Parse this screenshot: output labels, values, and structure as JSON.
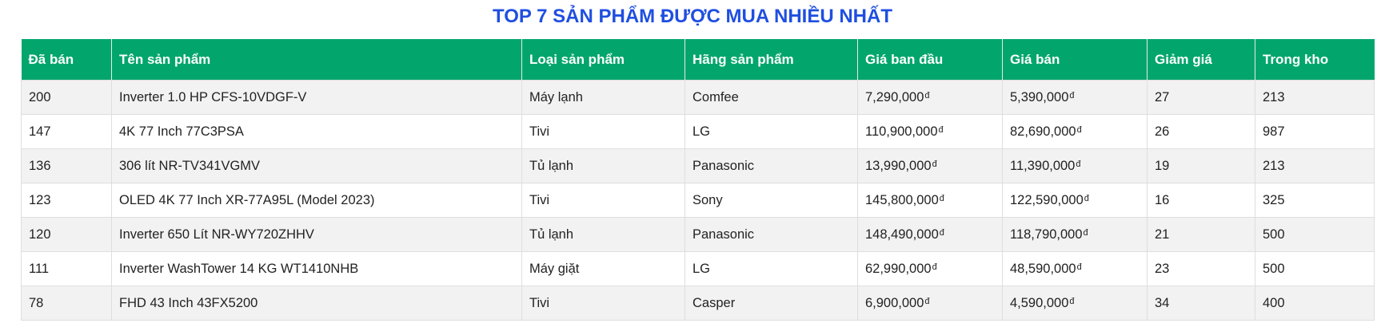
{
  "title": "TOP 7 SẢN PHẨM ĐƯỢC MUA NHIỀU NHẤT",
  "currency_symbol": "đ",
  "colors": {
    "title": "#1f4fe0",
    "header_bg": "#02a66c",
    "header_text": "#ffffff",
    "row_alt_bg": "#f2f2f2"
  },
  "table": {
    "headers": [
      "Đã bán",
      "Tên sản phẩm",
      "Loại sản phẩm",
      "Hãng sản phẩm",
      "Giá ban đầu",
      "Giá bán",
      "Giảm giá",
      "Trong kho"
    ],
    "rows": [
      {
        "sold": "200",
        "name": "Inverter 1.0 HP CFS-10VDGF-V",
        "category": "Máy lạnh",
        "brand": "Comfee",
        "original_price": "7,290,000",
        "sale_price": "5,390,000",
        "discount": "27",
        "stock": "213"
      },
      {
        "sold": "147",
        "name": "4K 77 Inch 77C3PSA",
        "category": "Tivi",
        "brand": "LG",
        "original_price": "110,900,000",
        "sale_price": "82,690,000",
        "discount": "26",
        "stock": "987"
      },
      {
        "sold": "136",
        "name": "306 lít NR-TV341VGMV",
        "category": "Tủ lạnh",
        "brand": "Panasonic",
        "original_price": "13,990,000",
        "sale_price": "11,390,000",
        "discount": "19",
        "stock": "213"
      },
      {
        "sold": "123",
        "name": "OLED 4K 77 Inch XR-77A95L (Model 2023)",
        "category": "Tivi",
        "brand": "Sony",
        "original_price": "145,800,000",
        "sale_price": "122,590,000",
        "discount": "16",
        "stock": "325"
      },
      {
        "sold": "120",
        "name": "Inverter 650 Lít NR-WY720ZHHV",
        "category": "Tủ lạnh",
        "brand": "Panasonic",
        "original_price": "148,490,000",
        "sale_price": "118,790,000",
        "discount": "21",
        "stock": "500"
      },
      {
        "sold": "111",
        "name": "Inverter WashTower 14 KG WT1410NHB",
        "category": "Máy giặt",
        "brand": "LG",
        "original_price": "62,990,000",
        "sale_price": "48,590,000",
        "discount": "23",
        "stock": "500"
      },
      {
        "sold": "78",
        "name": "FHD 43 Inch 43FX5200",
        "category": "Tivi",
        "brand": "Casper",
        "original_price": "6,900,000",
        "sale_price": "4,590,000",
        "discount": "34",
        "stock": "400"
      }
    ]
  }
}
